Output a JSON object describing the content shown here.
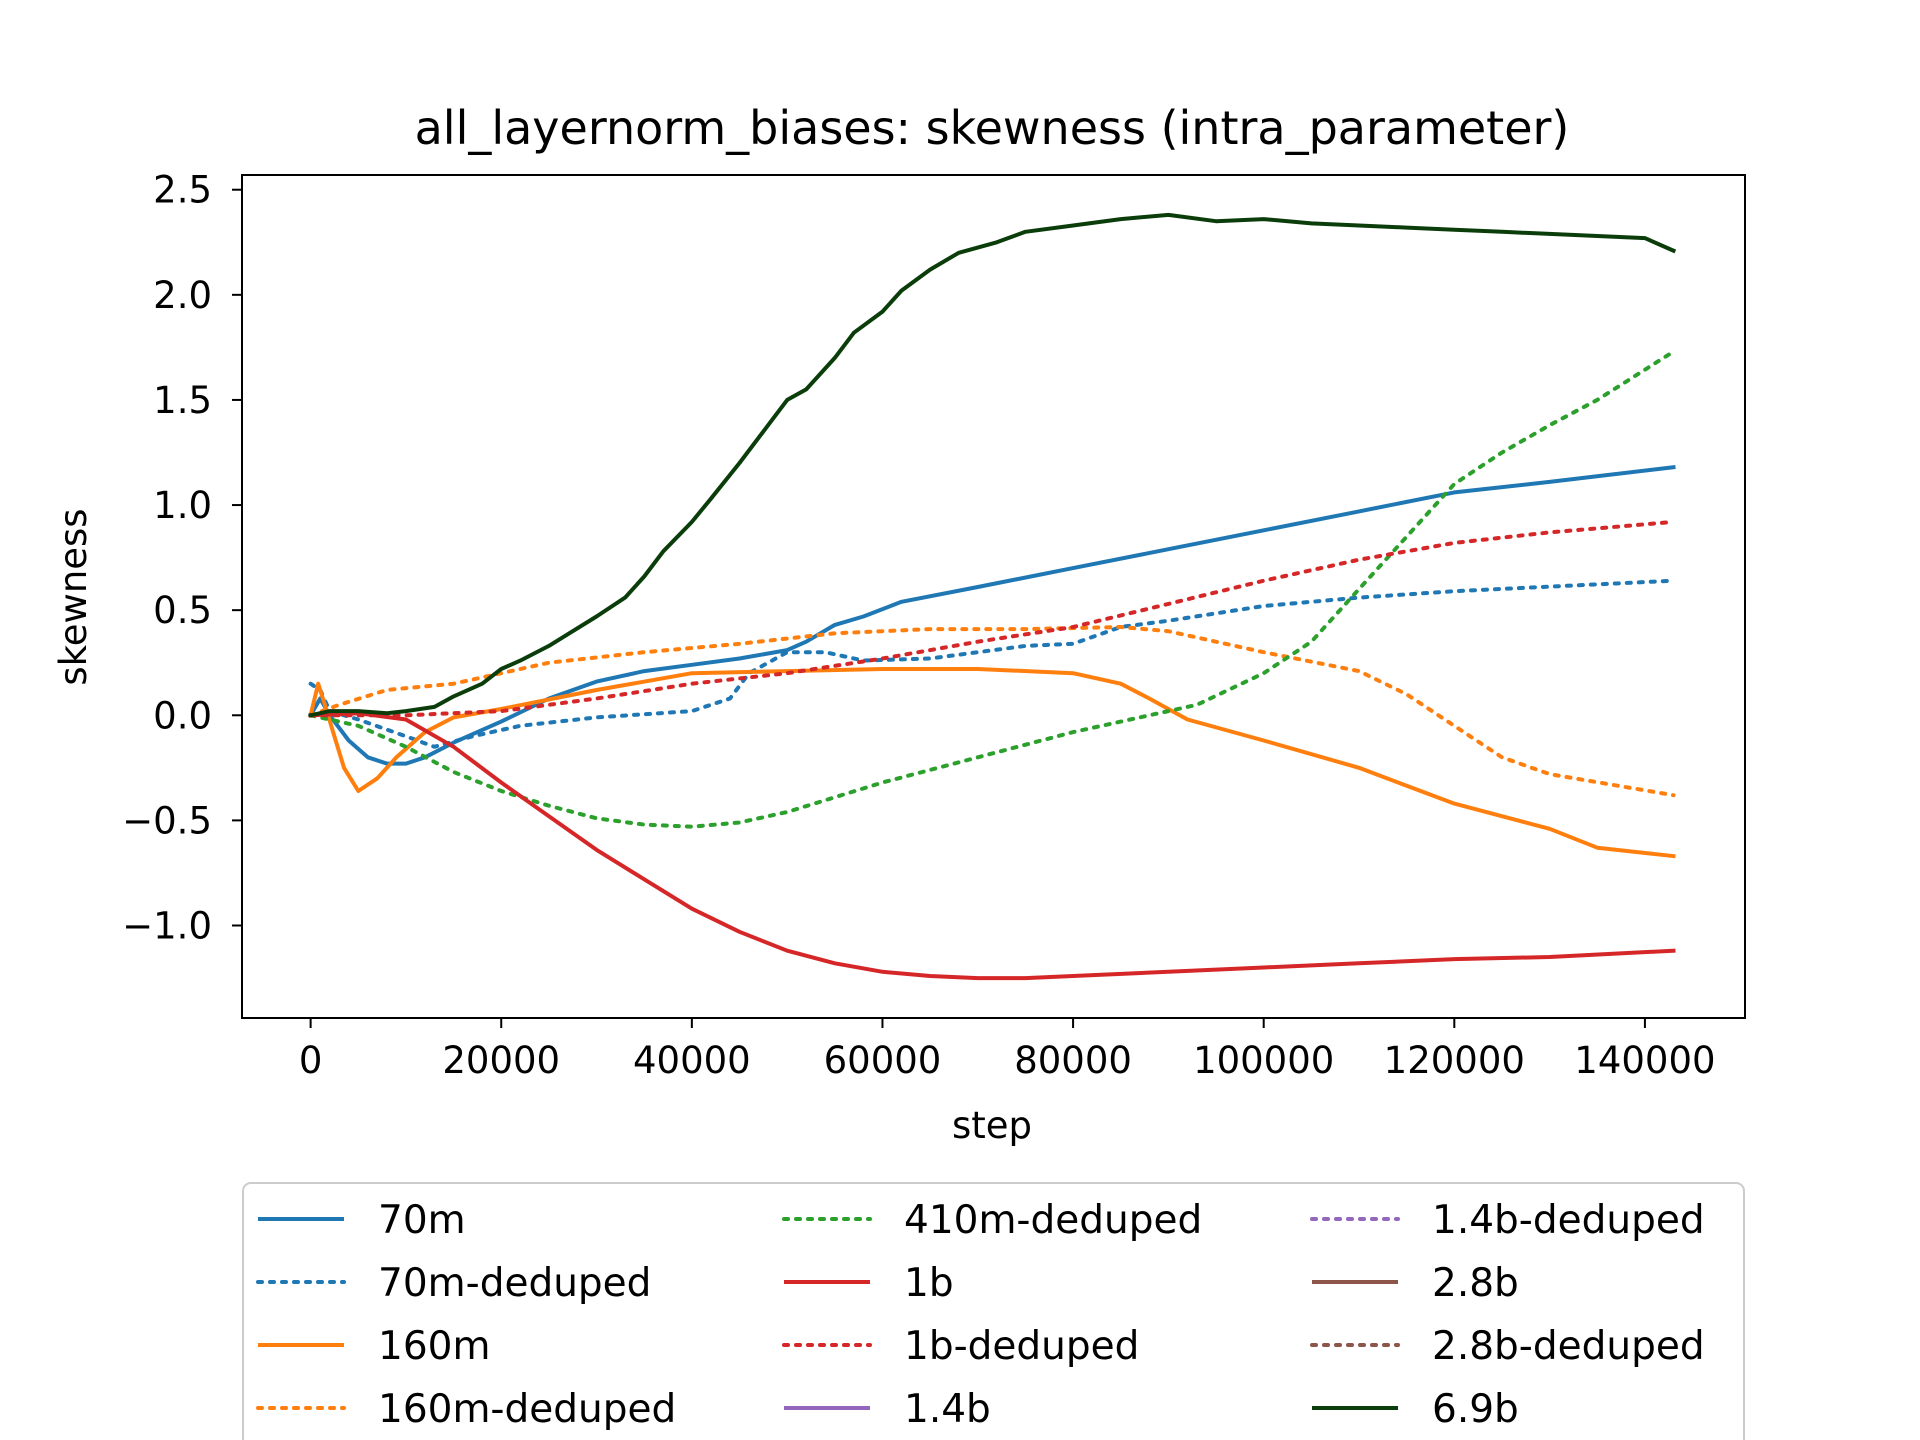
{
  "chart_data": {
    "type": "line",
    "title": "all_layernorm_biases: skewness (intra_parameter)",
    "xlabel": "step",
    "ylabel": "skewness",
    "xlim": [
      -7200,
      150500
    ],
    "ylim": [
      -1.44,
      2.57
    ],
    "xticks": [
      0,
      20000,
      40000,
      60000,
      80000,
      100000,
      120000,
      140000
    ],
    "xtick_labels": [
      "0",
      "20000",
      "40000",
      "60000",
      "80000",
      "100000",
      "120000",
      "140000"
    ],
    "yticks": [
      -1.0,
      -0.5,
      0.0,
      0.5,
      1.0,
      1.5,
      2.0,
      2.5
    ],
    "ytick_labels": [
      "−1.0",
      "−0.5",
      "0.0",
      "0.5",
      "1.0",
      "1.5",
      "2.0",
      "2.5"
    ],
    "grid": false,
    "legend_position": "bottom, below plot, 3 columns",
    "series": [
      {
        "name": "70m",
        "color": "#1f77b4",
        "style": "solid",
        "points": [
          [
            0,
            0
          ],
          [
            1000,
            0.08
          ],
          [
            2000,
            0
          ],
          [
            4000,
            -0.12
          ],
          [
            6000,
            -0.2
          ],
          [
            8000,
            -0.23
          ],
          [
            10000,
            -0.23
          ],
          [
            12000,
            -0.2
          ],
          [
            15000,
            -0.13
          ],
          [
            20000,
            -0.03
          ],
          [
            25000,
            0.08
          ],
          [
            30000,
            0.16
          ],
          [
            35000,
            0.21
          ],
          [
            40000,
            0.24
          ],
          [
            45000,
            0.27
          ],
          [
            50000,
            0.31
          ],
          [
            52000,
            0.35
          ],
          [
            55000,
            0.43
          ],
          [
            58000,
            0.47
          ],
          [
            62000,
            0.54
          ],
          [
            70000,
            0.61
          ],
          [
            80000,
            0.7
          ],
          [
            90000,
            0.79
          ],
          [
            100000,
            0.88
          ],
          [
            110000,
            0.97
          ],
          [
            120000,
            1.06
          ],
          [
            130000,
            1.11
          ],
          [
            143000,
            1.18
          ]
        ]
      },
      {
        "name": "70m-deduped",
        "color": "#1f77b4",
        "style": "dotted",
        "points": [
          [
            0,
            0.15
          ],
          [
            1000,
            0.12
          ],
          [
            2000,
            0.02
          ],
          [
            5000,
            -0.02
          ],
          [
            10000,
            -0.1
          ],
          [
            13000,
            -0.15
          ],
          [
            17000,
            -0.1
          ],
          [
            22000,
            -0.05
          ],
          [
            30000,
            -0.01
          ],
          [
            40000,
            0.02
          ],
          [
            44000,
            0.08
          ],
          [
            46000,
            0.2
          ],
          [
            50000,
            0.3
          ],
          [
            54000,
            0.3
          ],
          [
            58000,
            0.26
          ],
          [
            65000,
            0.27
          ],
          [
            75000,
            0.33
          ],
          [
            80000,
            0.34
          ],
          [
            85000,
            0.42
          ],
          [
            90000,
            0.45
          ],
          [
            100000,
            0.52
          ],
          [
            110000,
            0.56
          ],
          [
            120000,
            0.59
          ],
          [
            143000,
            0.64
          ]
        ]
      },
      {
        "name": "160m",
        "color": "#ff7f0e",
        "style": "solid",
        "points": [
          [
            0,
            0
          ],
          [
            800,
            0.15
          ],
          [
            1500,
            0.05
          ],
          [
            2500,
            -0.1
          ],
          [
            3500,
            -0.25
          ],
          [
            5000,
            -0.36
          ],
          [
            7000,
            -0.3
          ],
          [
            9000,
            -0.2
          ],
          [
            12000,
            -0.08
          ],
          [
            15000,
            -0.01
          ],
          [
            20000,
            0.03
          ],
          [
            30000,
            0.12
          ],
          [
            40000,
            0.2
          ],
          [
            50000,
            0.21
          ],
          [
            60000,
            0.22
          ],
          [
            70000,
            0.22
          ],
          [
            80000,
            0.2
          ],
          [
            85000,
            0.15
          ],
          [
            88000,
            0.08
          ],
          [
            92000,
            -0.02
          ],
          [
            100000,
            -0.12
          ],
          [
            110000,
            -0.25
          ],
          [
            120000,
            -0.42
          ],
          [
            130000,
            -0.54
          ],
          [
            135000,
            -0.63
          ],
          [
            143000,
            -0.67
          ]
        ]
      },
      {
        "name": "160m-deduped",
        "color": "#ff7f0e",
        "style": "dotted",
        "points": [
          [
            0,
            0
          ],
          [
            3000,
            0.05
          ],
          [
            8000,
            0.12
          ],
          [
            15000,
            0.15
          ],
          [
            25000,
            0.25
          ],
          [
            35000,
            0.3
          ],
          [
            45000,
            0.34
          ],
          [
            55000,
            0.39
          ],
          [
            65000,
            0.41
          ],
          [
            75000,
            0.41
          ],
          [
            85000,
            0.42
          ],
          [
            90000,
            0.4
          ],
          [
            100000,
            0.3
          ],
          [
            110000,
            0.21
          ],
          [
            115000,
            0.1
          ],
          [
            120000,
            -0.05
          ],
          [
            125000,
            -0.2
          ],
          [
            130000,
            -0.28
          ],
          [
            143000,
            -0.38
          ]
        ]
      },
      {
        "name": "410m-deduped",
        "color": "#2ca02c",
        "style": "dotted",
        "points": [
          [
            0,
            0
          ],
          [
            5000,
            -0.05
          ],
          [
            10000,
            -0.15
          ],
          [
            15000,
            -0.27
          ],
          [
            20000,
            -0.36
          ],
          [
            25000,
            -0.43
          ],
          [
            30000,
            -0.49
          ],
          [
            35000,
            -0.52
          ],
          [
            40000,
            -0.53
          ],
          [
            45000,
            -0.51
          ],
          [
            50000,
            -0.46
          ],
          [
            60000,
            -0.32
          ],
          [
            70000,
            -0.2
          ],
          [
            80000,
            -0.08
          ],
          [
            88000,
            0
          ],
          [
            93000,
            0.05
          ],
          [
            100000,
            0.2
          ],
          [
            105000,
            0.35
          ],
          [
            110000,
            0.6
          ],
          [
            115000,
            0.85
          ],
          [
            120000,
            1.1
          ],
          [
            125000,
            1.25
          ],
          [
            130000,
            1.38
          ],
          [
            135000,
            1.5
          ],
          [
            143000,
            1.73
          ]
        ]
      },
      {
        "name": "1b",
        "color": "#d62728",
        "style": "solid",
        "points": [
          [
            0,
            0
          ],
          [
            5000,
            0.01
          ],
          [
            10000,
            -0.02
          ],
          [
            15000,
            -0.15
          ],
          [
            20000,
            -0.32
          ],
          [
            25000,
            -0.48
          ],
          [
            30000,
            -0.64
          ],
          [
            35000,
            -0.78
          ],
          [
            40000,
            -0.92
          ],
          [
            45000,
            -1.03
          ],
          [
            50000,
            -1.12
          ],
          [
            55000,
            -1.18
          ],
          [
            60000,
            -1.22
          ],
          [
            65000,
            -1.24
          ],
          [
            70000,
            -1.25
          ],
          [
            75000,
            -1.25
          ],
          [
            80000,
            -1.24
          ],
          [
            90000,
            -1.22
          ],
          [
            100000,
            -1.2
          ],
          [
            110000,
            -1.18
          ],
          [
            120000,
            -1.16
          ],
          [
            130000,
            -1.15
          ],
          [
            143000,
            -1.12
          ]
        ]
      },
      {
        "name": "1b-deduped",
        "color": "#d62728",
        "style": "dotted",
        "points": [
          [
            0,
            0
          ],
          [
            10000,
            0
          ],
          [
            20000,
            0.02
          ],
          [
            30000,
            0.08
          ],
          [
            40000,
            0.15
          ],
          [
            50000,
            0.2
          ],
          [
            60000,
            0.27
          ],
          [
            70000,
            0.35
          ],
          [
            80000,
            0.42
          ],
          [
            90000,
            0.53
          ],
          [
            100000,
            0.64
          ],
          [
            110000,
            0.74
          ],
          [
            120000,
            0.82
          ],
          [
            130000,
            0.87
          ],
          [
            143000,
            0.92
          ]
        ]
      },
      {
        "name": "1.4b",
        "color": "#9467bd",
        "style": "solid",
        "points": []
      },
      {
        "name": "1.4b-deduped",
        "color": "#9467bd",
        "style": "dotted",
        "points": []
      },
      {
        "name": "2.8b",
        "color": "#8c564b",
        "style": "solid",
        "points": []
      },
      {
        "name": "2.8b-deduped",
        "color": "#8c564b",
        "style": "dotted",
        "points": []
      },
      {
        "name": "6.9b",
        "color": "#0b3d0b",
        "style": "solid",
        "points": [
          [
            0,
            0
          ],
          [
            2000,
            0.02
          ],
          [
            5000,
            0.02
          ],
          [
            8000,
            0.01
          ],
          [
            10000,
            0.02
          ],
          [
            13000,
            0.04
          ],
          [
            15000,
            0.09
          ],
          [
            18000,
            0.15
          ],
          [
            20000,
            0.22
          ],
          [
            22000,
            0.26
          ],
          [
            25000,
            0.33
          ],
          [
            30000,
            0.47
          ],
          [
            33000,
            0.56
          ],
          [
            35000,
            0.66
          ],
          [
            37000,
            0.78
          ],
          [
            40000,
            0.92
          ],
          [
            42000,
            1.03
          ],
          [
            45000,
            1.2
          ],
          [
            48000,
            1.38
          ],
          [
            50000,
            1.5
          ],
          [
            52000,
            1.55
          ],
          [
            55000,
            1.7
          ],
          [
            57000,
            1.82
          ],
          [
            60000,
            1.92
          ],
          [
            62000,
            2.02
          ],
          [
            65000,
            2.12
          ],
          [
            68000,
            2.2
          ],
          [
            72000,
            2.25
          ],
          [
            75000,
            2.3
          ],
          [
            80000,
            2.33
          ],
          [
            85000,
            2.36
          ],
          [
            90000,
            2.38
          ],
          [
            95000,
            2.35
          ],
          [
            100000,
            2.36
          ],
          [
            105000,
            2.34
          ],
          [
            110000,
            2.33
          ],
          [
            115000,
            2.32
          ],
          [
            120000,
            2.31
          ],
          [
            125000,
            2.3
          ],
          [
            130000,
            2.29
          ],
          [
            135000,
            2.28
          ],
          [
            140000,
            2.27
          ],
          [
            143000,
            2.21
          ]
        ]
      }
    ]
  }
}
